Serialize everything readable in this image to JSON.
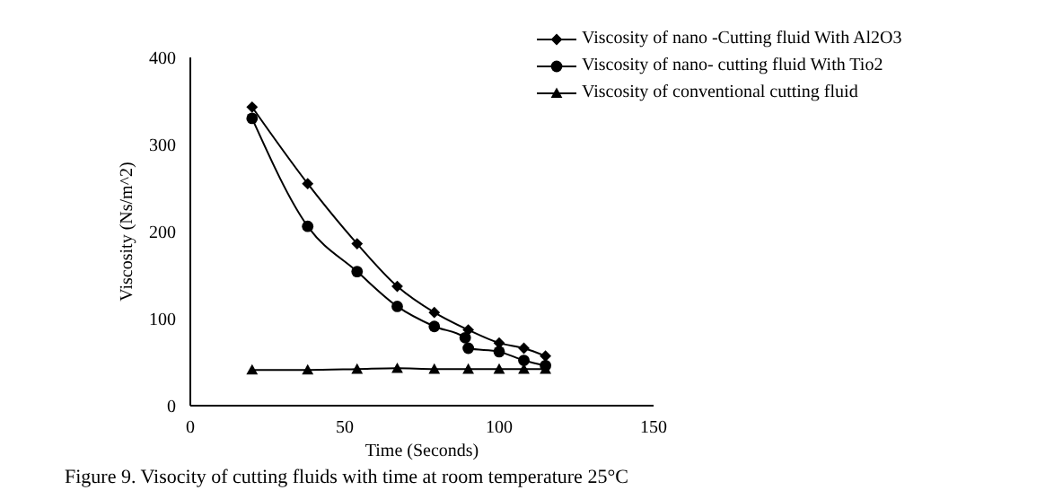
{
  "chart_data": {
    "type": "line",
    "xlabel": "Time (Seconds)",
    "ylabel": "Viscosity (Ns/m^2)",
    "annotations": [
      "Figure 9. Visocity of cutting fluids with time at room temperature 25°C"
    ],
    "xlim": [
      0,
      150
    ],
    "xticks": [
      0,
      50,
      100,
      150
    ],
    "ylim": [
      0,
      400
    ],
    "yticks": [
      0,
      100,
      200,
      300,
      400
    ],
    "grid": false,
    "legend": "top right",
    "line_style": "solid",
    "series": [
      {
        "name": "Viscosity of nano -Cutting fluid With Al2O3",
        "color": "#000000",
        "marker": "diamond",
        "x": [
          20,
          38,
          54,
          67,
          79,
          90,
          100,
          108,
          115
        ],
        "values": [
          343,
          255,
          186,
          137,
          107,
          87,
          72,
          66,
          57
        ]
      },
      {
        "name": "Viscosity of nano- cutting fluid With Tio2",
        "color": "#000000",
        "marker": "circle",
        "x": [
          20,
          38,
          54,
          67,
          79,
          89,
          90,
          100,
          108,
          115
        ],
        "values": [
          330,
          206,
          154,
          114,
          91,
          78,
          66,
          62,
          52,
          46
        ]
      },
      {
        "name": "Viscosity of conventional cutting fluid",
        "color": "#000000",
        "marker": "triangle",
        "x": [
          20,
          38,
          54,
          67,
          79,
          90,
          100,
          108,
          115
        ],
        "values": [
          41,
          41,
          42,
          43,
          42,
          42,
          42,
          42,
          42
        ]
      }
    ]
  }
}
